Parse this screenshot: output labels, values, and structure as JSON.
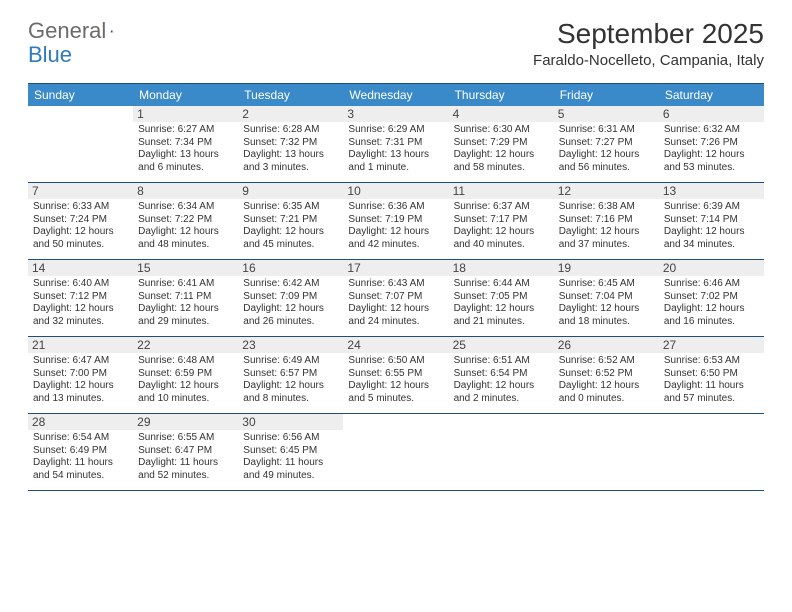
{
  "brand": {
    "word1": "General",
    "word2": "Blue"
  },
  "title": {
    "month": "September 2025",
    "location": "Faraldo-Nocelleto, Campania, Italy"
  },
  "colors": {
    "header_bg": "#3a8ac9",
    "header_text": "#ffffff",
    "border": "#1f4e79",
    "daynum_bg": "#eeeeee",
    "text": "#333333",
    "logo_gray": "#6b6b6b",
    "logo_blue": "#2f7bbf"
  },
  "day_names": [
    "Sunday",
    "Monday",
    "Tuesday",
    "Wednesday",
    "Thursday",
    "Friday",
    "Saturday"
  ],
  "weeks": [
    [
      {
        "day": "",
        "sunrise": "",
        "sunset": "",
        "daylight1": "",
        "daylight2": ""
      },
      {
        "day": "1",
        "sunrise": "Sunrise: 6:27 AM",
        "sunset": "Sunset: 7:34 PM",
        "daylight1": "Daylight: 13 hours",
        "daylight2": "and 6 minutes."
      },
      {
        "day": "2",
        "sunrise": "Sunrise: 6:28 AM",
        "sunset": "Sunset: 7:32 PM",
        "daylight1": "Daylight: 13 hours",
        "daylight2": "and 3 minutes."
      },
      {
        "day": "3",
        "sunrise": "Sunrise: 6:29 AM",
        "sunset": "Sunset: 7:31 PM",
        "daylight1": "Daylight: 13 hours",
        "daylight2": "and 1 minute."
      },
      {
        "day": "4",
        "sunrise": "Sunrise: 6:30 AM",
        "sunset": "Sunset: 7:29 PM",
        "daylight1": "Daylight: 12 hours",
        "daylight2": "and 58 minutes."
      },
      {
        "day": "5",
        "sunrise": "Sunrise: 6:31 AM",
        "sunset": "Sunset: 7:27 PM",
        "daylight1": "Daylight: 12 hours",
        "daylight2": "and 56 minutes."
      },
      {
        "day": "6",
        "sunrise": "Sunrise: 6:32 AM",
        "sunset": "Sunset: 7:26 PM",
        "daylight1": "Daylight: 12 hours",
        "daylight2": "and 53 minutes."
      }
    ],
    [
      {
        "day": "7",
        "sunrise": "Sunrise: 6:33 AM",
        "sunset": "Sunset: 7:24 PM",
        "daylight1": "Daylight: 12 hours",
        "daylight2": "and 50 minutes."
      },
      {
        "day": "8",
        "sunrise": "Sunrise: 6:34 AM",
        "sunset": "Sunset: 7:22 PM",
        "daylight1": "Daylight: 12 hours",
        "daylight2": "and 48 minutes."
      },
      {
        "day": "9",
        "sunrise": "Sunrise: 6:35 AM",
        "sunset": "Sunset: 7:21 PM",
        "daylight1": "Daylight: 12 hours",
        "daylight2": "and 45 minutes."
      },
      {
        "day": "10",
        "sunrise": "Sunrise: 6:36 AM",
        "sunset": "Sunset: 7:19 PM",
        "daylight1": "Daylight: 12 hours",
        "daylight2": "and 42 minutes."
      },
      {
        "day": "11",
        "sunrise": "Sunrise: 6:37 AM",
        "sunset": "Sunset: 7:17 PM",
        "daylight1": "Daylight: 12 hours",
        "daylight2": "and 40 minutes."
      },
      {
        "day": "12",
        "sunrise": "Sunrise: 6:38 AM",
        "sunset": "Sunset: 7:16 PM",
        "daylight1": "Daylight: 12 hours",
        "daylight2": "and 37 minutes."
      },
      {
        "day": "13",
        "sunrise": "Sunrise: 6:39 AM",
        "sunset": "Sunset: 7:14 PM",
        "daylight1": "Daylight: 12 hours",
        "daylight2": "and 34 minutes."
      }
    ],
    [
      {
        "day": "14",
        "sunrise": "Sunrise: 6:40 AM",
        "sunset": "Sunset: 7:12 PM",
        "daylight1": "Daylight: 12 hours",
        "daylight2": "and 32 minutes."
      },
      {
        "day": "15",
        "sunrise": "Sunrise: 6:41 AM",
        "sunset": "Sunset: 7:11 PM",
        "daylight1": "Daylight: 12 hours",
        "daylight2": "and 29 minutes."
      },
      {
        "day": "16",
        "sunrise": "Sunrise: 6:42 AM",
        "sunset": "Sunset: 7:09 PM",
        "daylight1": "Daylight: 12 hours",
        "daylight2": "and 26 minutes."
      },
      {
        "day": "17",
        "sunrise": "Sunrise: 6:43 AM",
        "sunset": "Sunset: 7:07 PM",
        "daylight1": "Daylight: 12 hours",
        "daylight2": "and 24 minutes."
      },
      {
        "day": "18",
        "sunrise": "Sunrise: 6:44 AM",
        "sunset": "Sunset: 7:05 PM",
        "daylight1": "Daylight: 12 hours",
        "daylight2": "and 21 minutes."
      },
      {
        "day": "19",
        "sunrise": "Sunrise: 6:45 AM",
        "sunset": "Sunset: 7:04 PM",
        "daylight1": "Daylight: 12 hours",
        "daylight2": "and 18 minutes."
      },
      {
        "day": "20",
        "sunrise": "Sunrise: 6:46 AM",
        "sunset": "Sunset: 7:02 PM",
        "daylight1": "Daylight: 12 hours",
        "daylight2": "and 16 minutes."
      }
    ],
    [
      {
        "day": "21",
        "sunrise": "Sunrise: 6:47 AM",
        "sunset": "Sunset: 7:00 PM",
        "daylight1": "Daylight: 12 hours",
        "daylight2": "and 13 minutes."
      },
      {
        "day": "22",
        "sunrise": "Sunrise: 6:48 AM",
        "sunset": "Sunset: 6:59 PM",
        "daylight1": "Daylight: 12 hours",
        "daylight2": "and 10 minutes."
      },
      {
        "day": "23",
        "sunrise": "Sunrise: 6:49 AM",
        "sunset": "Sunset: 6:57 PM",
        "daylight1": "Daylight: 12 hours",
        "daylight2": "and 8 minutes."
      },
      {
        "day": "24",
        "sunrise": "Sunrise: 6:50 AM",
        "sunset": "Sunset: 6:55 PM",
        "daylight1": "Daylight: 12 hours",
        "daylight2": "and 5 minutes."
      },
      {
        "day": "25",
        "sunrise": "Sunrise: 6:51 AM",
        "sunset": "Sunset: 6:54 PM",
        "daylight1": "Daylight: 12 hours",
        "daylight2": "and 2 minutes."
      },
      {
        "day": "26",
        "sunrise": "Sunrise: 6:52 AM",
        "sunset": "Sunset: 6:52 PM",
        "daylight1": "Daylight: 12 hours",
        "daylight2": "and 0 minutes."
      },
      {
        "day": "27",
        "sunrise": "Sunrise: 6:53 AM",
        "sunset": "Sunset: 6:50 PM",
        "daylight1": "Daylight: 11 hours",
        "daylight2": "and 57 minutes."
      }
    ],
    [
      {
        "day": "28",
        "sunrise": "Sunrise: 6:54 AM",
        "sunset": "Sunset: 6:49 PM",
        "daylight1": "Daylight: 11 hours",
        "daylight2": "and 54 minutes."
      },
      {
        "day": "29",
        "sunrise": "Sunrise: 6:55 AM",
        "sunset": "Sunset: 6:47 PM",
        "daylight1": "Daylight: 11 hours",
        "daylight2": "and 52 minutes."
      },
      {
        "day": "30",
        "sunrise": "Sunrise: 6:56 AM",
        "sunset": "Sunset: 6:45 PM",
        "daylight1": "Daylight: 11 hours",
        "daylight2": "and 49 minutes."
      },
      {
        "day": "",
        "sunrise": "",
        "sunset": "",
        "daylight1": "",
        "daylight2": ""
      },
      {
        "day": "",
        "sunrise": "",
        "sunset": "",
        "daylight1": "",
        "daylight2": ""
      },
      {
        "day": "",
        "sunrise": "",
        "sunset": "",
        "daylight1": "",
        "daylight2": ""
      },
      {
        "day": "",
        "sunrise": "",
        "sunset": "",
        "daylight1": "",
        "daylight2": ""
      }
    ]
  ]
}
